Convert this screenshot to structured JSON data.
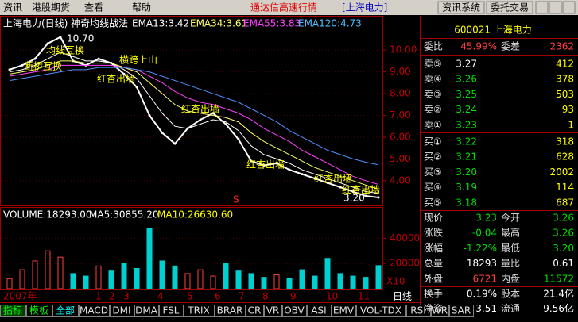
{
  "menu": [
    "资讯",
    "港股期货",
    "查看",
    "帮助"
  ],
  "app_title": "通达信高速行情",
  "stock_title": "[上海电力]",
  "buttons": [
    "资讯系统",
    "委托交易"
  ],
  "price_chart": {
    "header": "上海电力(日线) 神奇均线战法",
    "ema_labels": [
      "EMA13:3.42",
      "EMA34:3.61",
      "EMA55:3.83",
      "EMA120:4.73"
    ],
    "high_label": "10.70",
    "low_label": "3.20",
    "annotations": [
      "均线互换",
      "断桥互换",
      "横跨上山",
      "红杏出墙",
      "红杏出墙",
      "红杏出墙",
      "红杏出墙",
      "红杏出墙"
    ],
    "signal": "S",
    "ylim": [
      2.9,
      11.5
    ],
    "yticks": [
      {
        "value": 10,
        "label": "10.00"
      },
      {
        "value": 9,
        "label": "9.00"
      },
      {
        "value": 8,
        "label": "8.00"
      },
      {
        "value": 7,
        "label": "7.00"
      },
      {
        "value": 6,
        "label": "6.00"
      },
      {
        "value": 5,
        "label": "5.00"
      },
      {
        "value": 4,
        "label": "4.00"
      }
    ],
    "series": [
      {
        "name": "close",
        "color": "#ffffff",
        "values": [
          9.1,
          9.3,
          9.6,
          10.3,
          10.6,
          9.5,
          9.3,
          9.6,
          9.4,
          8.9,
          8.3,
          7.0,
          6.2,
          5.7,
          6.4,
          6.8,
          7.1,
          6.6,
          5.9,
          4.9,
          4.7,
          4.8,
          4.5,
          4.3,
          4.1,
          3.9,
          3.7,
          3.5,
          3.3,
          3.23
        ]
      },
      {
        "name": "EMA13",
        "color": "#ffffff",
        "values": [
          9.0,
          9.1,
          9.3,
          9.6,
          9.9,
          9.7,
          9.5,
          9.5,
          9.4,
          9.1,
          8.7,
          7.9,
          7.1,
          6.5,
          6.4,
          6.6,
          6.8,
          6.7,
          6.3,
          5.6,
          5.2,
          5.0,
          4.8,
          4.5,
          4.3,
          4.1,
          3.9,
          3.7,
          3.5,
          3.42
        ]
      },
      {
        "name": "EMA34",
        "color": "#ffff66",
        "values": [
          8.9,
          9.0,
          9.1,
          9.3,
          9.5,
          9.5,
          9.4,
          9.4,
          9.4,
          9.2,
          9.0,
          8.5,
          8.0,
          7.5,
          7.2,
          7.1,
          7.0,
          6.9,
          6.7,
          6.2,
          5.8,
          5.5,
          5.2,
          4.9,
          4.6,
          4.4,
          4.2,
          4.0,
          3.8,
          3.61
        ]
      },
      {
        "name": "EMA55",
        "color": "#ff40ff",
        "values": [
          8.8,
          8.9,
          9.0,
          9.1,
          9.3,
          9.3,
          9.3,
          9.3,
          9.3,
          9.2,
          9.1,
          8.8,
          8.5,
          8.1,
          7.8,
          7.6,
          7.5,
          7.3,
          7.1,
          6.8,
          6.4,
          6.1,
          5.8,
          5.4,
          5.1,
          4.8,
          4.5,
          4.2,
          4.0,
          3.83
        ]
      },
      {
        "name": "EMA120",
        "color": "#4f8fff",
        "values": [
          8.6,
          8.7,
          8.8,
          8.9,
          9.0,
          9.1,
          9.1,
          9.2,
          9.2,
          9.2,
          9.1,
          9.0,
          8.8,
          8.6,
          8.4,
          8.2,
          8.0,
          7.8,
          7.6,
          7.3,
          7.0,
          6.7,
          6.3,
          6.0,
          5.7,
          5.4,
          5.2,
          5.0,
          4.85,
          4.73
        ]
      }
    ]
  },
  "volume_chart": {
    "header": "VOLUME:18293.00",
    "ma_labels": [
      "MA5:30855.20",
      "MA10:26630.60"
    ],
    "ylim": [
      0,
      64000
    ],
    "yticks": [
      40000,
      20000
    ],
    "multiplier": "X10",
    "values": [
      8000,
      15000,
      22000,
      30000,
      25000,
      12000,
      10000,
      18000,
      14000,
      20000,
      16000,
      48000,
      22000,
      18000,
      12000,
      15000,
      10000,
      20000,
      14000,
      12000,
      9000,
      11000,
      8000,
      15000,
      10000,
      24000,
      12000,
      10000,
      9000,
      18293
    ]
  },
  "time_axis": {
    "year": "2007年",
    "months": [
      "1",
      "2",
      "3",
      "4",
      "5",
      "6",
      "7",
      "8",
      "9",
      "10",
      "11"
    ],
    "period": "日线"
  },
  "tabs": [
    "指标",
    "模板",
    "全部",
    "MACD",
    "DMI",
    "DMA",
    "FSL",
    "TRIX",
    "BRAR",
    "CR",
    "VR",
    "OBV",
    "ASI",
    "EMV",
    "VOL-TDX",
    "RSI",
    "WR",
    "SAR"
  ],
  "quote_panel": {
    "code": "600021 上海电力",
    "commission": [
      "委比",
      "45.99%",
      "委差",
      "2362"
    ],
    "asks": [
      [
        "卖⑤",
        "3.27",
        "412"
      ],
      [
        "卖④",
        "3.26",
        "378"
      ],
      [
        "卖③",
        "3.25",
        "503"
      ],
      [
        "卖②",
        "3.24",
        "93"
      ],
      [
        "卖①",
        "3.23",
        "1"
      ]
    ],
    "bids": [
      [
        "买①",
        "3.22",
        "318"
      ],
      [
        "买②",
        "3.21",
        "628"
      ],
      [
        "买③",
        "3.20",
        "2002"
      ],
      [
        "买④",
        "3.19",
        "114"
      ],
      [
        "买⑤",
        "3.18",
        "687"
      ]
    ],
    "stats": [
      [
        "现价",
        "3.23",
        "今开",
        "3.26"
      ],
      [
        "涨跌",
        "-0.04",
        "最高",
        "3.26"
      ],
      [
        "涨幅",
        "-1.22%",
        "最低",
        "3.20"
      ],
      [
        "总量",
        "18293",
        "量比",
        "0.61"
      ],
      [
        "外盘",
        "6721",
        "内盘",
        "11572"
      ],
      [
        "换手",
        "0.19%",
        "股本",
        "21.4亿"
      ],
      [
        "净资",
        "3.51",
        "流通",
        "9.56亿"
      ]
    ]
  }
}
